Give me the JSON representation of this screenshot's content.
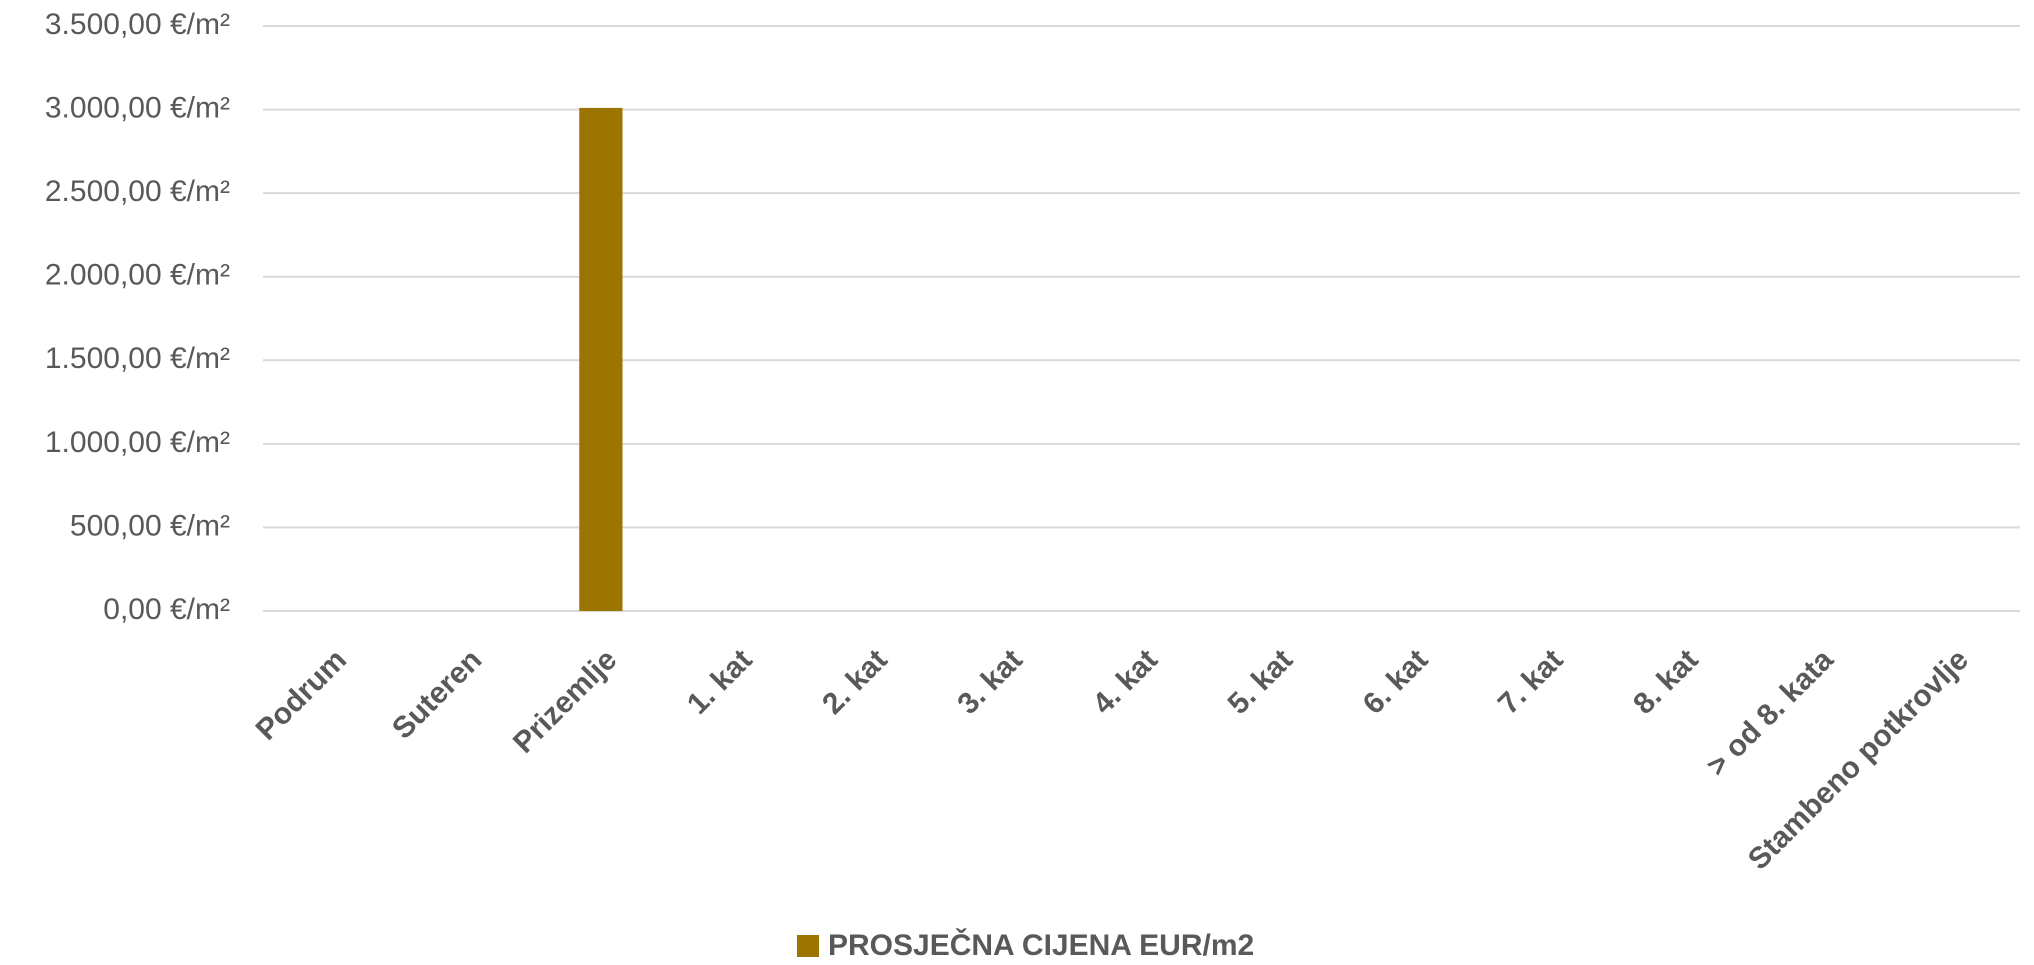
{
  "chart_data": {
    "type": "bar",
    "categories": [
      "Podrum",
      "Suteren",
      "Prizemlje",
      "1. kat",
      "2. kat",
      "3. kat",
      "4. kat",
      "5. kat",
      "6. kat",
      "7. kat",
      "8. kat",
      "> od 8. kata",
      "Stambeno potkrovlje"
    ],
    "series": [
      {
        "name": "PROSJEČNA CIJENA EUR/m2",
        "color": "#9c7400",
        "values": [
          0,
          0,
          3010,
          0,
          0,
          0,
          0,
          0,
          0,
          0,
          0,
          0,
          0
        ]
      }
    ],
    "ylim": [
      0,
      3500
    ],
    "yticks": [
      {
        "value": 0,
        "label": "0,00 €/m²"
      },
      {
        "value": 500,
        "label": "500,00 €/m²"
      },
      {
        "value": 1000,
        "label": "1.000,00 €/m²"
      },
      {
        "value": 1500,
        "label": "1.500,00 €/m²"
      },
      {
        "value": 2000,
        "label": "2.000,00 €/m²"
      },
      {
        "value": 2500,
        "label": "2.500,00 €/m²"
      },
      {
        "value": 3000,
        "label": "3.000,00 €/m²"
      },
      {
        "value": 3500,
        "label": "3.500,00 €/m²"
      }
    ],
    "grid": true,
    "legend": "bottom"
  }
}
